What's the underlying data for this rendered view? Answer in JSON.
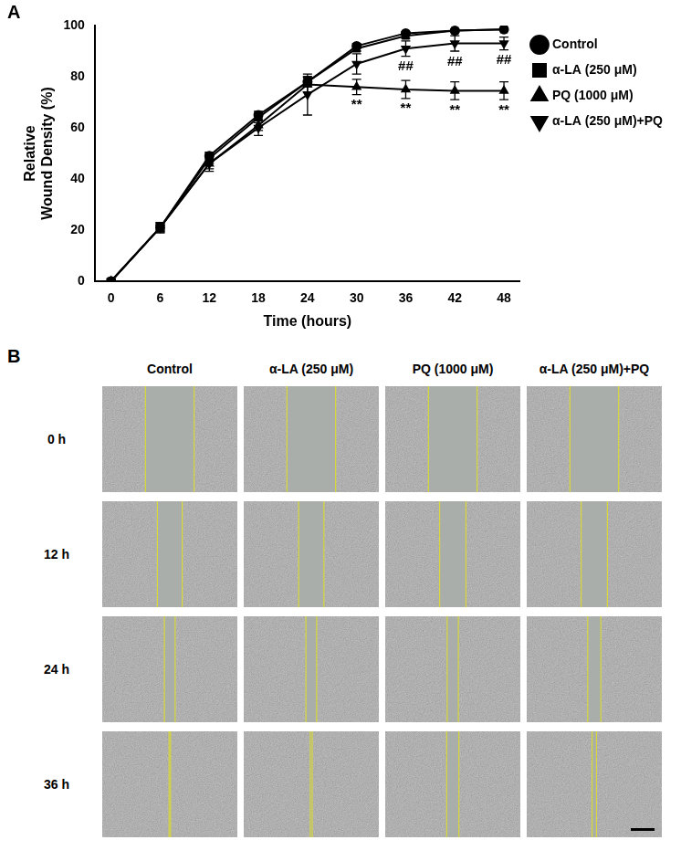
{
  "chart_data": {
    "type": "line",
    "title": "A",
    "x_label": "Time (hours)",
    "y_label": [
      "Relative",
      "Wound Density (%)"
    ],
    "x": [
      0,
      6,
      12,
      18,
      24,
      30,
      36,
      42,
      48
    ],
    "xlim": [
      -2,
      50
    ],
    "xticks": [
      0,
      6,
      12,
      18,
      24,
      30,
      36,
      42,
      48
    ],
    "ylim": [
      0,
      100
    ],
    "yticks": [
      0,
      20,
      40,
      60,
      80,
      100
    ],
    "grid": false,
    "legend": "right",
    "series": [
      {
        "name": "Control",
        "color": "#000000",
        "marker": "circle",
        "line_style": "solid",
        "values": [
          0,
          21,
          49,
          65,
          78,
          92,
          97,
          98,
          98.5
        ],
        "errors": [
          0,
          1.5,
          1.5,
          1.5,
          1.5,
          1,
          0.5,
          0.5,
          0.5
        ]
      },
      {
        "name": "α-LA (250 μM)",
        "color": "#000000",
        "marker": "square",
        "line_style": "solid",
        "values": [
          0,
          21,
          48,
          64,
          78,
          91,
          96,
          98,
          98.5
        ],
        "errors": [
          0,
          1.5,
          2,
          2,
          2,
          1,
          1,
          0.5,
          0.5
        ]
      },
      {
        "name": "PQ (1000 μM)",
        "color": "#000000",
        "marker": "triangle-up",
        "line_style": "solid",
        "values": [
          0,
          21,
          46,
          61,
          77,
          76,
          75,
          74.5,
          74.5
        ],
        "errors": [
          0,
          2,
          2,
          2,
          3,
          3,
          3.5,
          3.5,
          3.5
        ]
      },
      {
        "name": "α-LA (250 μM)+PQ",
        "color": "#000000",
        "marker": "triangle-down",
        "line_style": "solid",
        "values": [
          0,
          21,
          46,
          60,
          73,
          85,
          91,
          93,
          93
        ],
        "errors": [
          0,
          2,
          3,
          3,
          8,
          4,
          3,
          3,
          2.5
        ]
      }
    ],
    "annotations": [
      {
        "text": "**",
        "series": "PQ (1000 μM)",
        "x": 30
      },
      {
        "text": "**",
        "series": "PQ (1000 μM)",
        "x": 36
      },
      {
        "text": "**",
        "series": "PQ (1000 μM)",
        "x": 42
      },
      {
        "text": "**",
        "series": "PQ (1000 μM)",
        "x": 48
      },
      {
        "text": "##",
        "series": "α-LA (250 μM)+PQ",
        "x": 36
      },
      {
        "text": "##",
        "series": "α-LA (250 μM)+PQ",
        "x": 42
      },
      {
        "text": "##",
        "series": "α-LA (250 μM)+PQ",
        "x": 48
      }
    ]
  },
  "panel_b": {
    "label": "B",
    "columns": [
      "Control",
      "α-LA (250 μM)",
      "PQ (1000 μM)",
      "α-LA (250 μM)+PQ"
    ],
    "rows": [
      {
        "value": 0,
        "label": "0 h"
      },
      {
        "value": 12,
        "label": "12 h"
      },
      {
        "value": 24,
        "label": "24 h"
      },
      {
        "value": 36,
        "label": "36 h"
      }
    ]
  }
}
